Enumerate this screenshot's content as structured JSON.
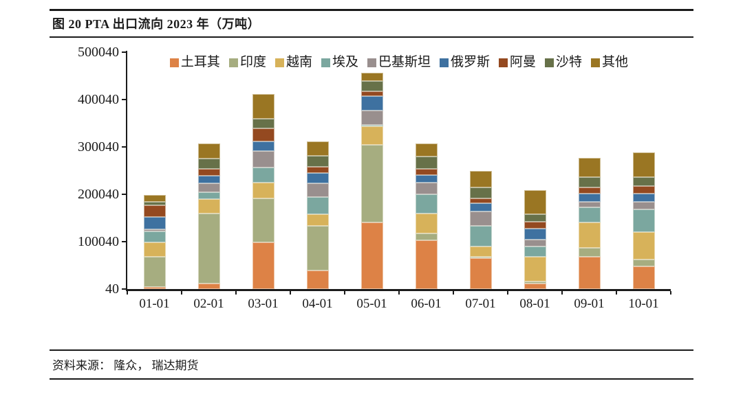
{
  "figure": {
    "title": "图 20  PTA 出口流向 2023 年（万吨）",
    "source": "资料来源： 隆众， 瑞达期货"
  },
  "colors": {
    "axis": "#1a1a1a",
    "background": "#ffffff"
  },
  "chart_data": {
    "type": "bar",
    "stacked": true,
    "title": "PTA 出口流向 2023 年（万吨）",
    "xlabel": "",
    "ylabel": "",
    "grid": false,
    "legend_position": "top",
    "ylim": [
      40,
      500040
    ],
    "y_ticks": [
      40,
      100040,
      200040,
      300040,
      400040,
      500040
    ],
    "y_tick_labels": [
      "40",
      "100040",
      "200040",
      "300040",
      "400040",
      "500040"
    ],
    "categories": [
      "01-01",
      "02-01",
      "03-01",
      "04-01",
      "05-01",
      "06-01",
      "07-01",
      "08-01",
      "09-01",
      "10-01"
    ],
    "series": [
      {
        "name": "土耳其",
        "color": "#DD8246",
        "values": [
          4000,
          11000,
          98000,
          39000,
          141000,
          103000,
          66000,
          11000,
          68000,
          48000
        ]
      },
      {
        "name": "印度",
        "color": "#A6AD80",
        "values": [
          64500,
          148500,
          94000,
          95000,
          164000,
          14500,
          2000,
          5000,
          19500,
          15000
        ]
      },
      {
        "name": "越南",
        "color": "#D7B25A",
        "values": [
          30500,
          30000,
          32000,
          24000,
          38000,
          42000,
          21500,
          51500,
          53000,
          58000
        ]
      },
      {
        "name": "埃及",
        "color": "#7BA79F",
        "values": [
          23000,
          15500,
          33000,
          37000,
          2000,
          40000,
          43500,
          23000,
          32000,
          47000
        ]
      },
      {
        "name": "巴基斯坦",
        "color": "#998F8E",
        "values": [
          3500,
          17500,
          35000,
          29000,
          31000,
          25500,
          30500,
          14500,
          11000,
          17000
        ]
      },
      {
        "name": "俄罗斯",
        "color": "#3E71A0",
        "values": [
          27000,
          16500,
          19500,
          20500,
          30500,
          15500,
          17000,
          23000,
          18000,
          17000
        ]
      },
      {
        "name": "阿曼",
        "color": "#944920",
        "values": [
          24000,
          14500,
          28000,
          13500,
          10500,
          13500,
          10500,
          14500,
          13500,
          16000
        ]
      },
      {
        "name": "沙特",
        "color": "#677149",
        "values": [
          7000,
          22000,
          20500,
          23000,
          21500,
          26000,
          23000,
          15500,
          21500,
          18000
        ]
      },
      {
        "name": "其他",
        "color": "#9A7623",
        "values": [
          14500,
          31000,
          51500,
          31000,
          18000,
          28000,
          34000,
          50500,
          41000,
          53000
        ]
      }
    ]
  }
}
